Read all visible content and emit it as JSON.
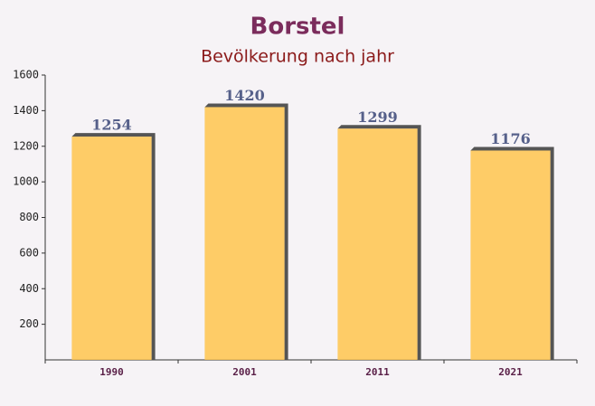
{
  "chart_data": {
    "type": "bar",
    "title": "Borstel",
    "subtitle": "Bevölkerung nach jahr",
    "categories": [
      "1990",
      "2001",
      "2011",
      "2021"
    ],
    "values": [
      1254,
      1420,
      1299,
      1176
    ],
    "color": "#ffc44d",
    "ylim": [
      0,
      1600
    ],
    "yticks": [
      200,
      400,
      600,
      800,
      1000,
      1200,
      1400,
      1600
    ]
  }
}
